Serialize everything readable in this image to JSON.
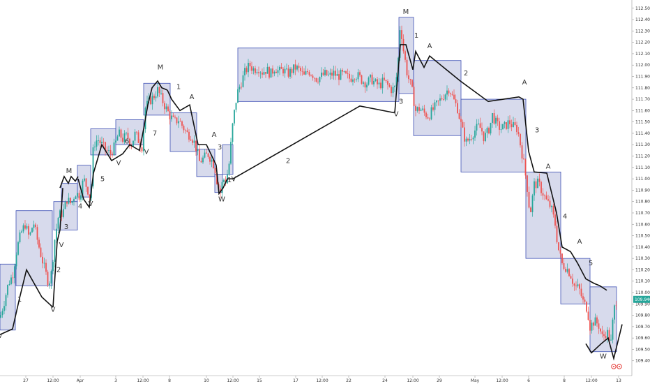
{
  "colors": {
    "up": "#26a69a",
    "down": "#ef5350",
    "box_fill": "#c9cde6",
    "box_stroke": "#3f51b5",
    "wave": "#111111",
    "price_badge": "#26a69a",
    "axis_text": "#333333",
    "axis_line": "#999999"
  },
  "price_badge": "109.940",
  "chart_data": {
    "type": "candlestick",
    "y_axis": {
      "position": "right",
      "ylim": [
        109.38,
        112.56
      ],
      "ticks": [
        "109.400",
        "109.500",
        "109.600",
        "109.700",
        "109.800",
        "109.900",
        "110.000",
        "110.100",
        "110.200",
        "110.300",
        "110.400",
        "110.500",
        "110.600",
        "110.700",
        "110.800",
        "110.900",
        "111.000",
        "111.100",
        "111.200",
        "111.300",
        "111.400",
        "111.500",
        "111.600",
        "111.700",
        "111.800",
        "111.900",
        "112.000",
        "112.100",
        "112.200",
        "112.300",
        "112.400",
        "112.500"
      ]
    },
    "x_axis": {
      "ticks": [
        {
          "label": "27",
          "t": 37
        },
        {
          "label": "12:00",
          "t": 76
        },
        {
          "label": "Apr",
          "t": 115
        },
        {
          "label": "3",
          "t": 166
        },
        {
          "label": "12:00",
          "t": 205
        },
        {
          "label": "8",
          "t": 243
        },
        {
          "label": "10",
          "t": 296
        },
        {
          "label": "12:00",
          "t": 334
        },
        {
          "label": "15",
          "t": 372
        },
        {
          "label": "17",
          "t": 424
        },
        {
          "label": "12:00",
          "t": 462
        },
        {
          "label": "22",
          "t": 500
        },
        {
          "label": "24",
          "t": 552
        },
        {
          "label": "12:00",
          "t": 592
        },
        {
          "label": "29",
          "t": 630
        },
        {
          "label": "May",
          "t": 681
        },
        {
          "label": "12:00",
          "t": 720
        },
        {
          "label": "6",
          "t": 758
        },
        {
          "label": "8",
          "t": 809
        },
        {
          "label": "12:00",
          "t": 848
        },
        {
          "label": "13",
          "t": 887
        }
      ]
    },
    "price_path": [
      [
        0,
        109.78
      ],
      [
        6,
        109.92
      ],
      [
        12,
        110.08
      ],
      [
        18,
        110.15
      ],
      [
        24,
        110.38
      ],
      [
        30,
        110.52
      ],
      [
        36,
        110.6
      ],
      [
        42,
        110.48
      ],
      [
        48,
        110.62
      ],
      [
        54,
        110.45
      ],
      [
        60,
        110.3
      ],
      [
        66,
        110.16
      ],
      [
        70,
        110.08
      ],
      [
        74,
        110.18
      ],
      [
        78,
        110.45
      ],
      [
        84,
        110.68
      ],
      [
        90,
        110.7
      ],
      [
        96,
        110.82
      ],
      [
        102,
        110.78
      ],
      [
        108,
        110.88
      ],
      [
        114,
        110.85
      ],
      [
        120,
        111.0
      ],
      [
        126,
        110.9
      ],
      [
        130,
        110.82
      ],
      [
        134,
        111.3
      ],
      [
        140,
        111.35
      ],
      [
        146,
        111.3
      ],
      [
        152,
        111.25
      ],
      [
        158,
        111.22
      ],
      [
        164,
        111.28
      ],
      [
        170,
        111.4
      ],
      [
        176,
        111.35
      ],
      [
        182,
        111.38
      ],
      [
        188,
        111.3
      ],
      [
        194,
        111.4
      ],
      [
        200,
        111.32
      ],
      [
        204,
        111.28
      ],
      [
        208,
        111.62
      ],
      [
        214,
        111.68
      ],
      [
        220,
        111.72
      ],
      [
        226,
        111.78
      ],
      [
        232,
        111.7
      ],
      [
        238,
        111.62
      ],
      [
        244,
        111.55
      ],
      [
        250,
        111.5
      ],
      [
        256,
        111.52
      ],
      [
        262,
        111.46
      ],
      [
        268,
        111.4
      ],
      [
        274,
        111.38
      ],
      [
        280,
        111.3
      ],
      [
        286,
        111.15
      ],
      [
        292,
        111.18
      ],
      [
        298,
        111.22
      ],
      [
        304,
        111.16
      ],
      [
        308,
        111.1
      ],
      [
        312,
        110.95
      ],
      [
        316,
        110.88
      ],
      [
        320,
        111.0
      ],
      [
        324,
        110.98
      ],
      [
        328,
        111.1
      ],
      [
        334,
        111.5
      ],
      [
        340,
        111.75
      ],
      [
        346,
        111.85
      ],
      [
        352,
        111.95
      ],
      [
        358,
        112.0
      ],
      [
        364,
        111.96
      ],
      [
        370,
        111.98
      ],
      [
        376,
        111.94
      ],
      [
        382,
        111.96
      ],
      [
        388,
        111.92
      ],
      [
        394,
        111.98
      ],
      [
        400,
        111.94
      ],
      [
        406,
        111.96
      ],
      [
        412,
        111.92
      ],
      [
        418,
        111.95
      ],
      [
        424,
        111.98
      ],
      [
        430,
        111.95
      ],
      [
        436,
        111.9
      ],
      [
        442,
        111.95
      ],
      [
        448,
        111.92
      ],
      [
        454,
        111.88
      ],
      [
        460,
        111.9
      ],
      [
        466,
        111.92
      ],
      [
        472,
        111.9
      ],
      [
        478,
        111.93
      ],
      [
        484,
        111.9
      ],
      [
        490,
        111.92
      ],
      [
        496,
        111.9
      ],
      [
        502,
        111.88
      ],
      [
        508,
        111.92
      ],
      [
        514,
        111.9
      ],
      [
        520,
        111.86
      ],
      [
        526,
        111.84
      ],
      [
        532,
        111.88
      ],
      [
        538,
        111.84
      ],
      [
        544,
        111.82
      ],
      [
        550,
        111.86
      ],
      [
        556,
        111.82
      ],
      [
        562,
        111.78
      ],
      [
        566,
        111.8
      ],
      [
        570,
        111.95
      ],
      [
        574,
        112.38
      ],
      [
        578,
        112.15
      ],
      [
        584,
        111.92
      ],
      [
        590,
        111.8
      ],
      [
        596,
        111.6
      ],
      [
        602,
        111.62
      ],
      [
        608,
        111.58
      ],
      [
        614,
        111.55
      ],
      [
        620,
        111.6
      ],
      [
        626,
        111.65
      ],
      [
        632,
        111.7
      ],
      [
        638,
        111.75
      ],
      [
        644,
        111.8
      ],
      [
        650,
        111.7
      ],
      [
        656,
        111.62
      ],
      [
        662,
        111.45
      ],
      [
        668,
        111.32
      ],
      [
        674,
        111.36
      ],
      [
        680,
        111.42
      ],
      [
        686,
        111.46
      ],
      [
        690,
        111.44
      ],
      [
        694,
        111.36
      ],
      [
        698,
        111.4
      ],
      [
        702,
        111.45
      ],
      [
        706,
        111.56
      ],
      [
        712,
        111.48
      ],
      [
        718,
        111.44
      ],
      [
        724,
        111.46
      ],
      [
        730,
        111.5
      ],
      [
        736,
        111.46
      ],
      [
        742,
        111.44
      ],
      [
        748,
        111.24
      ],
      [
        752,
        111.1
      ],
      [
        756,
        110.92
      ],
      [
        760,
        110.68
      ],
      [
        766,
        110.95
      ],
      [
        772,
        110.96
      ],
      [
        778,
        110.88
      ],
      [
        784,
        110.8
      ],
      [
        790,
        110.75
      ],
      [
        796,
        110.6
      ],
      [
        800,
        110.4
      ],
      [
        806,
        110.25
      ],
      [
        812,
        110.22
      ],
      [
        818,
        110.16
      ],
      [
        824,
        110.05
      ],
      [
        830,
        110.04
      ],
      [
        836,
        109.92
      ],
      [
        842,
        109.86
      ],
      [
        846,
        109.7
      ],
      [
        852,
        109.75
      ],
      [
        858,
        109.72
      ],
      [
        864,
        109.6
      ],
      [
        870,
        109.66
      ],
      [
        876,
        109.56
      ],
      [
        880,
        109.84
      ],
      [
        884,
        109.94
      ]
    ],
    "boxes": [
      {
        "t0": 0,
        "t1": 22,
        "ymin": 109.67,
        "ymax": 110.25
      },
      {
        "t0": 23,
        "t1": 75,
        "ymin": 110.06,
        "ymax": 110.72
      },
      {
        "t0": 77,
        "t1": 111,
        "ymin": 110.55,
        "ymax": 110.8
      },
      {
        "t0": 88,
        "t1": 111,
        "ymin": 110.8,
        "ymax": 110.96
      },
      {
        "t0": 111,
        "t1": 130,
        "ymin": 110.84,
        "ymax": 111.12
      },
      {
        "t0": 130,
        "t1": 166,
        "ymin": 111.21,
        "ymax": 111.44
      },
      {
        "t0": 166,
        "t1": 206,
        "ymin": 111.3,
        "ymax": 111.52
      },
      {
        "t0": 206,
        "t1": 244,
        "ymin": 111.56,
        "ymax": 111.84
      },
      {
        "t0": 244,
        "t1": 282,
        "ymin": 111.24,
        "ymax": 111.58
      },
      {
        "t0": 282,
        "t1": 308,
        "ymin": 111.02,
        "ymax": 111.26
      },
      {
        "t0": 308,
        "t1": 319,
        "ymin": 110.88,
        "ymax": 111.04
      },
      {
        "t0": 319,
        "t1": 334,
        "ymin": 111.04,
        "ymax": 111.3
      },
      {
        "t0": 341,
        "t1": 572,
        "ymin": 111.68,
        "ymax": 112.15
      },
      {
        "t0": 572,
        "t1": 593,
        "ymin": 111.75,
        "ymax": 112.42
      },
      {
        "t0": 593,
        "t1": 661,
        "ymin": 111.38,
        "ymax": 112.04
      },
      {
        "t0": 661,
        "t1": 754,
        "ymin": 111.06,
        "ymax": 111.7
      },
      {
        "t0": 754,
        "t1": 804,
        "ymin": 110.3,
        "ymax": 111.06
      },
      {
        "t0": 804,
        "t1": 846,
        "ymin": 109.9,
        "ymax": 110.3
      },
      {
        "t0": 846,
        "t1": 884,
        "ymin": 109.48,
        "ymax": 110.05
      }
    ],
    "wave_lines": [
      [
        [
          0,
          109.63
        ],
        [
          18,
          109.68
        ],
        [
          28,
          109.95
        ],
        [
          38,
          110.2
        ],
        [
          60,
          109.96
        ],
        [
          76,
          109.87
        ]
      ],
      [
        [
          76,
          109.87
        ],
        [
          82,
          110.45
        ],
        [
          86,
          110.55
        ],
        [
          90,
          110.92
        ]
      ],
      [
        [
          86,
          110.92
        ],
        [
          92,
          111.02
        ],
        [
          98,
          110.96
        ],
        [
          102,
          111.02
        ],
        [
          108,
          110.98
        ],
        [
          112,
          111.02
        ]
      ],
      [
        [
          112,
          111.0
        ],
        [
          120,
          110.82
        ],
        [
          128,
          110.75
        ],
        [
          134,
          111.05
        ],
        [
          146,
          111.3
        ],
        [
          160,
          111.16
        ],
        [
          176,
          111.22
        ],
        [
          186,
          111.3
        ],
        [
          200,
          111.25
        ],
        [
          206,
          111.44
        ],
        [
          212,
          111.65
        ],
        [
          218,
          111.8
        ],
        [
          226,
          111.86
        ],
        [
          232,
          111.8
        ],
        [
          240,
          111.78
        ]
      ],
      [
        [
          240,
          111.78
        ],
        [
          246,
          111.7
        ],
        [
          258,
          111.6
        ],
        [
          272,
          111.65
        ],
        [
          284,
          111.3
        ],
        [
          296,
          111.3
        ],
        [
          310,
          111.12
        ]
      ],
      [
        [
          310,
          111.12
        ],
        [
          314,
          110.87
        ],
        [
          320,
          110.92
        ],
        [
          326,
          111.0
        ],
        [
          334,
          111.0
        ]
      ],
      [
        [
          334,
          111.0
        ],
        [
          516,
          111.64
        ],
        [
          566,
          111.58
        ]
      ],
      [
        [
          566,
          111.58
        ],
        [
          574,
          112.18
        ],
        [
          582,
          112.18
        ],
        [
          592,
          111.96
        ],
        [
          596,
          112.12
        ],
        [
          608,
          111.98
        ],
        [
          616,
          112.08
        ],
        [
          660,
          111.86
        ],
        [
          700,
          111.68
        ],
        [
          744,
          111.72
        ],
        [
          750,
          111.7
        ],
        [
          758,
          111.24
        ],
        [
          766,
          111.06
        ],
        [
          784,
          111.05
        ],
        [
          798,
          110.7
        ],
        [
          806,
          110.4
        ],
        [
          818,
          110.36
        ],
        [
          828,
          110.26
        ],
        [
          840,
          110.12
        ],
        [
          852,
          110.08
        ],
        [
          860,
          110.06
        ],
        [
          870,
          110.02
        ]
      ],
      [
        [
          840,
          109.55
        ],
        [
          848,
          109.47
        ],
        [
          862,
          109.55
        ],
        [
          872,
          109.6
        ],
        [
          880,
          109.42
        ],
        [
          892,
          109.72
        ]
      ]
    ],
    "labels": [
      {
        "text": "V",
        "t": 0,
        "y": 109.6
      },
      {
        "text": "1",
        "t": 28,
        "y": 109.92
      },
      {
        "text": "2",
        "t": 84,
        "y": 110.18
      },
      {
        "text": "V",
        "t": 76,
        "y": 109.83
      },
      {
        "text": "V",
        "t": 88,
        "y": 110.4
      },
      {
        "text": "3",
        "t": 95,
        "y": 110.56
      },
      {
        "text": "4",
        "t": 115,
        "y": 110.74
      },
      {
        "text": "M",
        "t": 99,
        "y": 111.05
      },
      {
        "text": "5",
        "t": 147,
        "y": 110.98
      },
      {
        "text": "V",
        "t": 130,
        "y": 110.76
      },
      {
        "text": "V",
        "t": 170,
        "y": 111.12
      },
      {
        "text": "6",
        "t": 182,
        "y": 111.31
      },
      {
        "text": "V",
        "t": 210,
        "y": 111.22
      },
      {
        "text": "7",
        "t": 222,
        "y": 111.38
      },
      {
        "text": "M",
        "t": 230,
        "y": 111.96
      },
      {
        "text": "1",
        "t": 256,
        "y": 111.79
      },
      {
        "text": "A",
        "t": 275,
        "y": 111.7
      },
      {
        "text": "A",
        "t": 307,
        "y": 111.37
      },
      {
        "text": "3",
        "t": 315,
        "y": 111.26
      },
      {
        "text": "1",
        "t": 329,
        "y": 110.97
      },
      {
        "text": "V",
        "t": 335,
        "y": 110.98
      },
      {
        "text": "W",
        "t": 318,
        "y": 110.8
      },
      {
        "text": "2",
        "t": 413,
        "y": 111.14
      },
      {
        "text": "3",
        "t": 575,
        "y": 111.66
      },
      {
        "text": "V",
        "t": 568,
        "y": 111.55
      },
      {
        "text": "M",
        "t": 582,
        "y": 112.45
      },
      {
        "text": "1",
        "t": 597,
        "y": 112.24
      },
      {
        "text": "A",
        "t": 616,
        "y": 112.15
      },
      {
        "text": "2",
        "t": 668,
        "y": 111.91
      },
      {
        "text": "A",
        "t": 752,
        "y": 111.83
      },
      {
        "text": "3",
        "t": 770,
        "y": 111.41
      },
      {
        "text": "A",
        "t": 786,
        "y": 111.09
      },
      {
        "text": "4",
        "t": 810,
        "y": 110.65
      },
      {
        "text": "A",
        "t": 831,
        "y": 110.43
      },
      {
        "text": "5",
        "t": 847,
        "y": 110.24
      },
      {
        "text": "W",
        "t": 865,
        "y": 109.42
      }
    ]
  }
}
